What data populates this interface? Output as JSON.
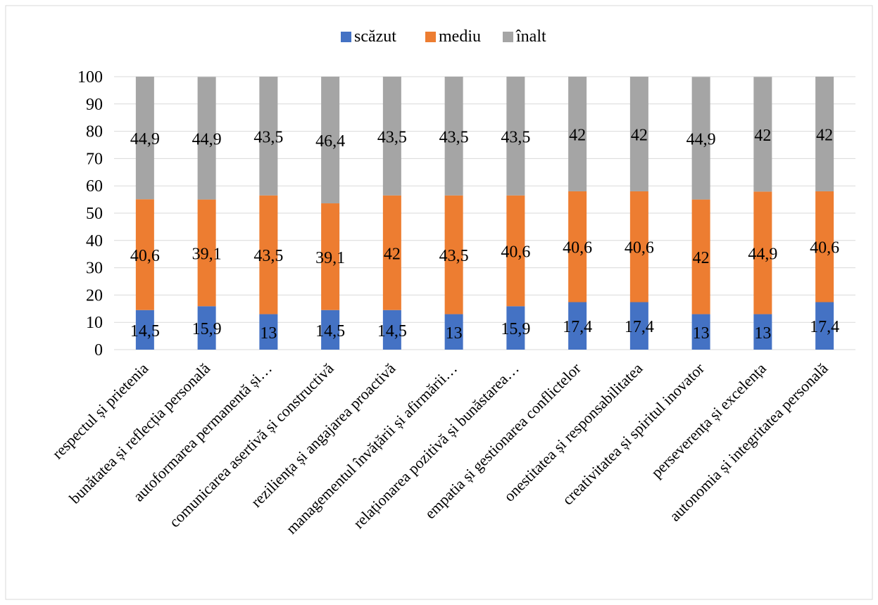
{
  "chart_data": {
    "type": "bar",
    "stacked": true,
    "categories": [
      "respectul și prietenia",
      "bunătatea și reflecția personală",
      "autoformarea permanentă și…",
      "comunicarea asertivă și constructivă",
      "reziliența și angajarea proactivă",
      "managementul învățării și afirmării…",
      "relaționarea pozitivă și bunăstarea…",
      "empatia și gestionarea conflictelor",
      "onestitatea și responsabilitatea",
      "creativitatea și spiritul inovator",
      "perseverența și excelența",
      "autonomia și integritatea personală"
    ],
    "series": [
      {
        "name": "scăzut",
        "color": "#4472c4",
        "values": [
          14.5,
          15.9,
          13,
          14.5,
          14.5,
          13,
          15.9,
          17.4,
          17.4,
          13,
          13,
          17.4
        ]
      },
      {
        "name": "mediu",
        "color": "#ed7d31",
        "values": [
          40.6,
          39.1,
          43.5,
          39.1,
          42,
          43.5,
          40.6,
          40.6,
          40.6,
          42,
          44.9,
          40.6
        ]
      },
      {
        "name": "înalt",
        "color": "#a5a5a5",
        "values": [
          44.9,
          44.9,
          43.5,
          46.4,
          43.5,
          43.5,
          43.5,
          42,
          42,
          44.9,
          42,
          42
        ]
      }
    ],
    "ylim": [
      0,
      100
    ],
    "yticks": [
      0,
      10,
      20,
      30,
      40,
      50,
      60,
      70,
      80,
      90,
      100
    ],
    "grid": true,
    "legend_position": "top"
  }
}
